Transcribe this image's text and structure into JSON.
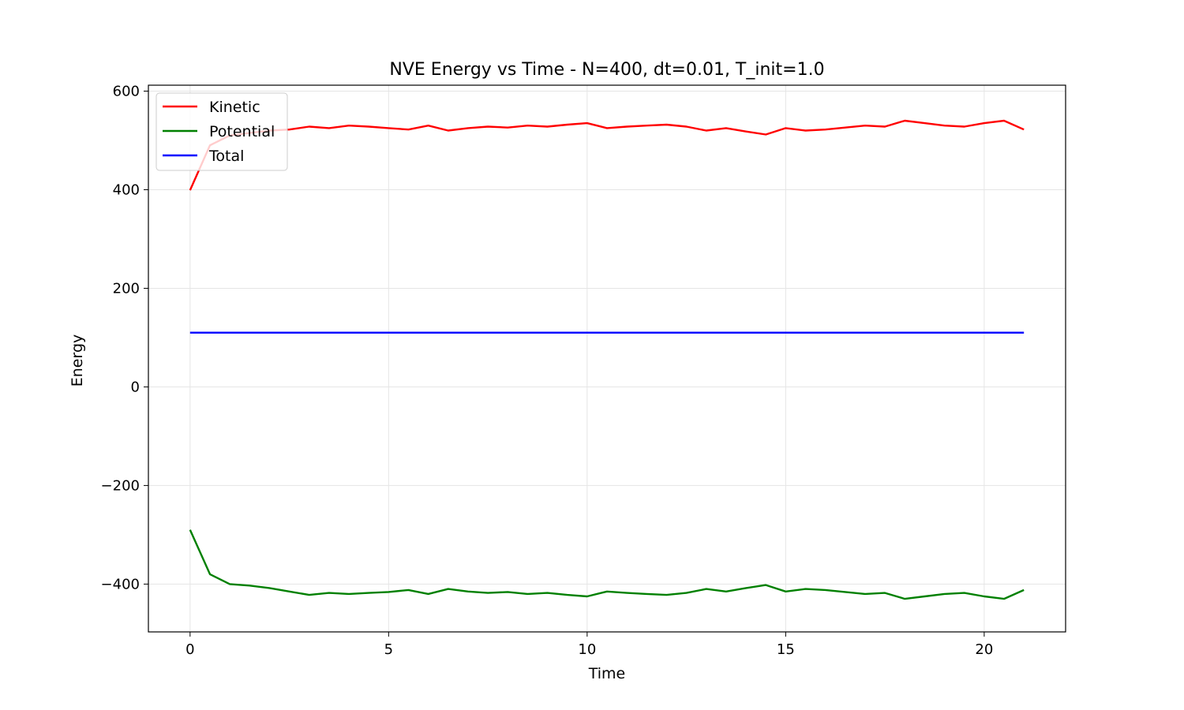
{
  "chart_data": {
    "type": "line",
    "title": "NVE Energy vs Time - N=400, dt=0.01, T_init=1.0",
    "xlabel": "Time",
    "ylabel": "Energy",
    "xlim": [
      -1.05,
      22.05
    ],
    "ylim": [
      -497,
      612
    ],
    "xticks": [
      0,
      5,
      10,
      15,
      20
    ],
    "yticks": [
      -400,
      -200,
      0,
      200,
      400,
      600
    ],
    "xtick_labels": [
      "0",
      "5",
      "10",
      "15",
      "20"
    ],
    "ytick_labels": [
      "−400",
      "−200",
      "0",
      "200",
      "400",
      "600"
    ],
    "grid": true,
    "legend_position": "upper-left",
    "x": [
      0,
      0.5,
      1,
      1.5,
      2,
      2.5,
      3,
      3.5,
      4,
      4.5,
      5,
      5.5,
      6,
      6.5,
      7,
      7.5,
      8,
      8.5,
      9,
      9.5,
      10,
      10.5,
      11,
      11.5,
      12,
      12.5,
      13,
      13.5,
      14,
      14.5,
      15,
      15.5,
      16,
      16.5,
      17,
      17.5,
      18,
      18.5,
      19,
      19.5,
      20,
      20.5,
      21
    ],
    "series": [
      {
        "name": "Kinetic",
        "color": "#ff0000",
        "values": [
          399,
          490,
          510,
          515,
          520,
          522,
          528,
          525,
          530,
          528,
          525,
          522,
          530,
          520,
          525,
          528,
          526,
          530,
          528,
          532,
          535,
          525,
          528,
          530,
          532,
          528,
          520,
          525,
          518,
          512,
          525,
          520,
          522,
          526,
          530,
          528,
          540,
          535,
          530,
          528,
          535,
          540,
          522
        ]
      },
      {
        "name": "Potential",
        "color": "#008000",
        "values": [
          -290,
          -380,
          -400,
          -403,
          -408,
          -415,
          -422,
          -418,
          -420,
          -418,
          -416,
          -412,
          -420,
          -410,
          -415,
          -418,
          -416,
          -420,
          -418,
          -422,
          -425,
          -415,
          -418,
          -420,
          -422,
          -418,
          -410,
          -415,
          -408,
          -402,
          -415,
          -410,
          -412,
          -416,
          -420,
          -418,
          -430,
          -425,
          -420,
          -418,
          -425,
          -430,
          -412
        ]
      },
      {
        "name": "Total",
        "color": "#0000ff",
        "values": [
          110,
          110,
          110,
          110,
          110,
          110,
          110,
          110,
          110,
          110,
          110,
          110,
          110,
          110,
          110,
          110,
          110,
          110,
          110,
          110,
          110,
          110,
          110,
          110,
          110,
          110,
          110,
          110,
          110,
          110,
          110,
          110,
          110,
          110,
          110,
          110,
          110,
          110,
          110,
          110,
          110,
          110,
          110
        ]
      }
    ]
  }
}
